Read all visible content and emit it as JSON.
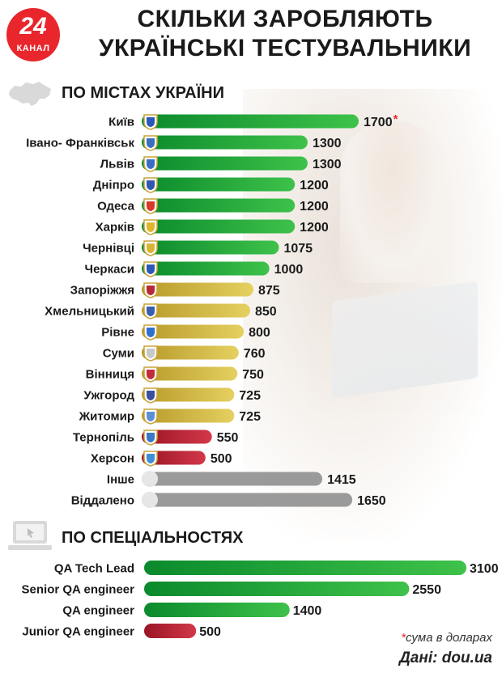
{
  "logo": {
    "number": "24",
    "text": "КАНАЛ"
  },
  "title_line1": "СКІЛЬКИ ЗАРОБЛЯЮТЬ",
  "title_line2": "УКРАЇНСЬКІ ТЕСТУВАЛЬНИКИ",
  "colors": {
    "green": "#19a83a",
    "yellow": "#cfb43a",
    "red": "#b3202e",
    "gray": "#9a9a9a",
    "accent": "#e8262c"
  },
  "chart_data": [
    {
      "type": "bar",
      "title": "ПО МІСТАХ УКРАЇНИ",
      "categories": [
        "Київ",
        "Івано- Франківськ",
        "Львів",
        "Дніпро",
        "Одеса",
        "Харків",
        "Чернівці",
        "Черкаси",
        "Запоріжжя",
        "Хмельницький",
        "Рівне",
        "Суми",
        "Вінниця",
        "Ужгород",
        "Житомир",
        "Тернопіль",
        "Херсон",
        "Інше",
        "Віддалено"
      ],
      "values": [
        1700,
        1300,
        1300,
        1200,
        1200,
        1200,
        1075,
        1000,
        875,
        850,
        800,
        760,
        750,
        725,
        725,
        550,
        500,
        1415,
        1650
      ],
      "value_labels": [
        "1700",
        "1300",
        "1300",
        "1200",
        "1200",
        "1200",
        "1075",
        "1000",
        "875",
        "850",
        "800",
        "760",
        "750",
        "725",
        "725",
        "550",
        "500",
        "1415",
        "1650"
      ],
      "bar_colors": [
        "green",
        "green",
        "green",
        "green",
        "green",
        "green",
        "green",
        "green",
        "yellow",
        "yellow",
        "yellow",
        "yellow",
        "yellow",
        "yellow",
        "yellow",
        "red",
        "red",
        "gray",
        "gray"
      ],
      "icons": [
        "kyiv-coat-of-arms-icon",
        "ivano-frankivsk-coat-of-arms-icon",
        "lviv-coat-of-arms-icon",
        "dnipro-coat-of-arms-icon",
        "odesa-coat-of-arms-icon",
        "kharkiv-coat-of-arms-icon",
        "chernivtsi-coat-of-arms-icon",
        "cherkasy-coat-of-arms-icon",
        "zaporizhzhia-coat-of-arms-icon",
        "khmelnytskyi-coat-of-arms-icon",
        "rivne-coat-of-arms-icon",
        "sumy-coat-of-arms-icon",
        "vinnytsia-coat-of-arms-icon",
        "uzhhorod-coat-of-arms-icon",
        "zhytomyr-coat-of-arms-icon",
        "ternopil-coat-of-arms-icon",
        "kherson-coat-of-arms-icon",
        "blank-circle-icon",
        "blank-circle-icon"
      ],
      "icon_colors": [
        "#2a58b8",
        "#3a6fc0",
        "#3b6cc4",
        "#3157b0",
        "#d63a2a",
        "#e1b52b",
        "#d8b536",
        "#2c58b6",
        "#b8283a",
        "#3a5fb0",
        "#2f6fd0",
        "#c8c8c8",
        "#c22c3a",
        "#3a4f9e",
        "#5b8fd8",
        "#3a78c8",
        "#3f8fd8",
        "#e6e6e6",
        "#e6e6e6"
      ],
      "annotation": "*"
    },
    {
      "type": "bar",
      "title": "ПО СПЕЦІАЛЬНОСТЯХ",
      "categories": [
        "QA Tech Lead",
        "Senior QA engineer",
        "QA engineer",
        "Junior QA engineer"
      ],
      "values": [
        3100,
        2550,
        1400,
        500
      ],
      "value_labels": [
        "3100",
        "2550",
        "1400",
        "500"
      ],
      "bar_colors": [
        "green",
        "green",
        "green",
        "red"
      ]
    }
  ],
  "footer": {
    "note_star": "*",
    "note": "сума в доларах",
    "source": "Дані: dou.ua"
  }
}
